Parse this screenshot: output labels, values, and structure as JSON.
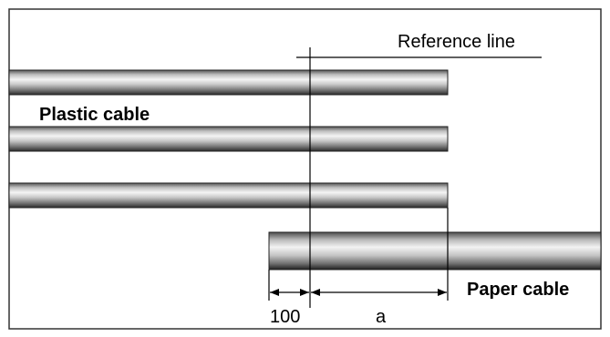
{
  "diagram": {
    "reference_line_label": "Reference line",
    "plastic_cable_label": "Plastic cable",
    "paper_cable_label": "Paper cable",
    "dim_left_label": "100",
    "dim_right_label": "a",
    "colors": {
      "frame": "#333333",
      "line": "#000000",
      "cable_light": "#f2f2f2",
      "cable_dark": "#3a3a3a"
    }
  }
}
